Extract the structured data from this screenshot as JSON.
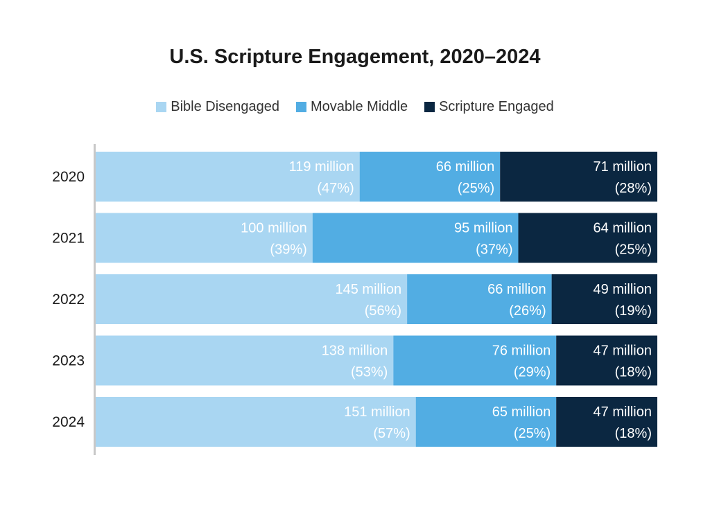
{
  "chart_data": {
    "type": "bar",
    "orientation": "horizontal",
    "stacked": true,
    "title": "U.S. Scripture Engagement, 2020–2024",
    "categories": [
      "2020",
      "2021",
      "2022",
      "2023",
      "2024"
    ],
    "series": [
      {
        "name": "Bible Disengaged",
        "color": "#a9d6f2",
        "values": [
          47,
          39,
          56,
          53,
          57
        ],
        "labels": [
          [
            "119 million",
            "(47%)"
          ],
          [
            "100 million",
            "(39%)"
          ],
          [
            "145 million",
            "(56%)"
          ],
          [
            "138 million",
            "(53%)"
          ],
          [
            "151 million",
            "(57%)"
          ]
        ]
      },
      {
        "name": "Movable Middle",
        "color": "#52ade3",
        "values": [
          25,
          37,
          26,
          29,
          25
        ],
        "labels": [
          [
            "66 million",
            "(25%)"
          ],
          [
            "95 million",
            "(37%)"
          ],
          [
            "66 million",
            "(26%)"
          ],
          [
            "76 million",
            "(29%)"
          ],
          [
            "65 million",
            "(25%)"
          ]
        ]
      },
      {
        "name": "Scripture Engaged",
        "color": "#0b2741",
        "values": [
          28,
          25,
          19,
          18,
          18
        ],
        "labels": [
          [
            "71 million",
            "(28%)"
          ],
          [
            "64 million",
            "(25%)"
          ],
          [
            "49 million",
            "(19%)"
          ],
          [
            "47 million",
            "(18%)"
          ],
          [
            "47 million",
            "(18%)"
          ]
        ]
      }
    ],
    "xlim": [
      0,
      100
    ],
    "grid": false,
    "legend_position": "top-center"
  }
}
